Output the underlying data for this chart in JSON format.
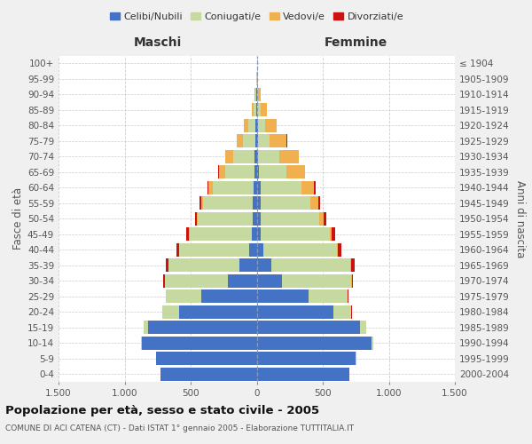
{
  "age_groups": [
    "100+",
    "95-99",
    "90-94",
    "85-89",
    "80-84",
    "75-79",
    "70-74",
    "65-69",
    "60-64",
    "55-59",
    "50-54",
    "45-49",
    "40-44",
    "35-39",
    "30-34",
    "25-29",
    "20-24",
    "15-19",
    "10-14",
    "5-9",
    "0-4"
  ],
  "birth_years": [
    "≤ 1904",
    "1905-1909",
    "1910-1914",
    "1915-1919",
    "1920-1924",
    "1925-1929",
    "1930-1934",
    "1935-1939",
    "1940-1944",
    "1945-1949",
    "1950-1954",
    "1955-1959",
    "1960-1964",
    "1965-1969",
    "1970-1974",
    "1975-1979",
    "1980-1984",
    "1985-1989",
    "1990-1994",
    "1995-1999",
    "2000-2004"
  ],
  "maschi_celibi": [
    0,
    0,
    2,
    4,
    8,
    10,
    15,
    20,
    25,
    28,
    30,
    35,
    60,
    130,
    220,
    420,
    590,
    820,
    870,
    760,
    730
  ],
  "maschi_coniugati": [
    0,
    2,
    8,
    22,
    58,
    95,
    165,
    215,
    305,
    375,
    415,
    475,
    525,
    535,
    475,
    265,
    125,
    38,
    8,
    2,
    0
  ],
  "maschi_vedovi": [
    0,
    2,
    5,
    14,
    28,
    48,
    58,
    52,
    33,
    18,
    9,
    5,
    3,
    2,
    1,
    0,
    0,
    0,
    0,
    0,
    0
  ],
  "maschi_divorziati": [
    0,
    0,
    0,
    0,
    0,
    0,
    2,
    4,
    8,
    14,
    14,
    18,
    18,
    18,
    9,
    4,
    2,
    0,
    0,
    0,
    0
  ],
  "femmine_nubili": [
    0,
    0,
    2,
    4,
    8,
    8,
    12,
    18,
    28,
    28,
    28,
    33,
    48,
    110,
    190,
    390,
    580,
    780,
    870,
    750,
    700
  ],
  "femmine_coniugate": [
    0,
    2,
    10,
    24,
    58,
    92,
    158,
    208,
    308,
    378,
    448,
    518,
    558,
    598,
    528,
    298,
    138,
    48,
    14,
    3,
    0
  ],
  "femmine_vedove": [
    0,
    5,
    20,
    48,
    88,
    128,
    148,
    138,
    98,
    58,
    34,
    18,
    9,
    5,
    2,
    1,
    0,
    0,
    0,
    0,
    0
  ],
  "femmine_divorziate": [
    0,
    0,
    0,
    0,
    0,
    2,
    2,
    4,
    9,
    17,
    19,
    24,
    29,
    28,
    11,
    5,
    2,
    0,
    0,
    0,
    0
  ],
  "color_celibi": "#4472C4",
  "color_coniugati": "#c5d9a0",
  "color_vedovi": "#f0b050",
  "color_divorziati": "#cc1111",
  "legend_labels": [
    "Celibi/Nubili",
    "Coniugati/e",
    "Vedovi/e",
    "Divorziati/e"
  ],
  "legend_colors": [
    "#4472C4",
    "#c5d9a0",
    "#f0b050",
    "#cc1111"
  ],
  "label_maschi": "Maschi",
  "label_femmine": "Femmine",
  "ylabel_left": "Fasce di età",
  "ylabel_right": "Anni di nascita",
  "title": "Popolazione per età, sesso e stato civile - 2005",
  "subtitle": "COMUNE DI ACI CATENA (CT) - Dati ISTAT 1° gennaio 2005 - Elaborazione TUTTITALIA.IT",
  "xlim": 1500,
  "xtick_vals": [
    -1500,
    -1000,
    -500,
    0,
    500,
    1000,
    1500
  ],
  "xtick_labels": [
    "1.500",
    "1.000",
    "500",
    "0",
    "500",
    "1.000",
    "1.500"
  ],
  "bg_color": "#f0f0f0",
  "plot_bg": "#ffffff",
  "grid_color": "#cccccc"
}
